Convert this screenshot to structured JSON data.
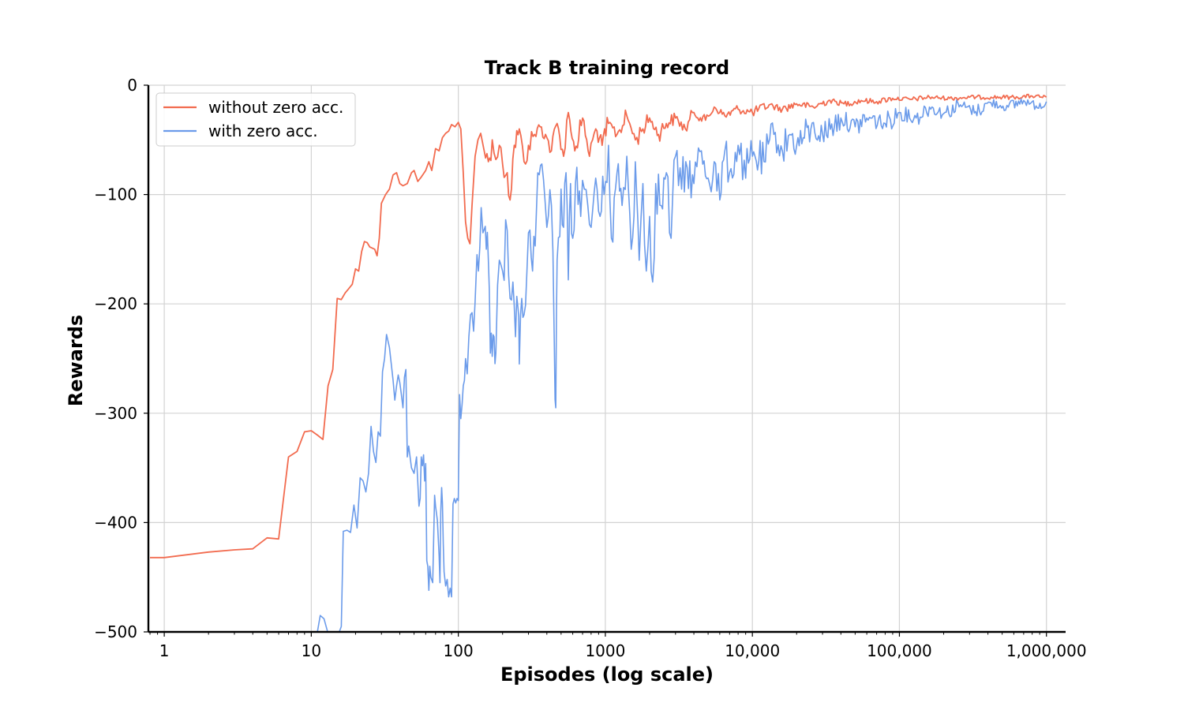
{
  "chart_data": {
    "type": "line",
    "title": "Track B training record",
    "xlabel": "Episodes (log scale)",
    "ylabel": "Rewards",
    "xscale": "log",
    "xlim": [
      0.78,
      1350000
    ],
    "ylim": [
      -500,
      0
    ],
    "x_ticks": [
      {
        "value": 1,
        "label": "1"
      },
      {
        "value": 10,
        "label": "10"
      },
      {
        "value": 100,
        "label": "100"
      },
      {
        "value": 1000,
        "label": "1000"
      },
      {
        "value": 10000,
        "label": "10,000"
      },
      {
        "value": 100000,
        "label": "100,000"
      },
      {
        "value": 1000000,
        "label": "1,000,000"
      }
    ],
    "y_ticks": [
      {
        "value": 0,
        "label": "0"
      },
      {
        "value": -100,
        "label": "−100"
      },
      {
        "value": -200,
        "label": "−200"
      },
      {
        "value": -300,
        "label": "−300"
      },
      {
        "value": -400,
        "label": "−400"
      },
      {
        "value": -500,
        "label": "−500"
      }
    ],
    "grid": true,
    "legend_position": "top-left",
    "series": [
      {
        "name": "without zero acc.",
        "color": "#f26b4f",
        "points": [
          [
            0.8,
            -432
          ],
          [
            1,
            -432
          ],
          [
            2,
            -427
          ],
          [
            3,
            -425
          ],
          [
            4,
            -424
          ],
          [
            5,
            -414
          ],
          [
            6,
            -415
          ],
          [
            7,
            -340
          ],
          [
            8,
            -335
          ],
          [
            9,
            -317
          ],
          [
            10,
            -316
          ],
          [
            11,
            -320
          ],
          [
            12,
            -324
          ],
          [
            13,
            -275
          ],
          [
            14,
            -260
          ],
          [
            15,
            -195
          ],
          [
            16,
            -196
          ],
          [
            17,
            -190
          ],
          [
            18,
            -186
          ],
          [
            19,
            -182
          ],
          [
            20,
            -168
          ],
          [
            21,
            -170
          ],
          [
            22,
            -152
          ],
          [
            23,
            -143
          ],
          [
            24,
            -144
          ],
          [
            25,
            -148
          ],
          [
            27,
            -150
          ],
          [
            28,
            -156
          ],
          [
            29,
            -140
          ],
          [
            30,
            -108
          ],
          [
            32,
            -100
          ],
          [
            34,
            -95
          ],
          [
            36,
            -82
          ],
          [
            38,
            -80
          ],
          [
            40,
            -90
          ],
          [
            42,
            -92
          ],
          [
            45,
            -90
          ],
          [
            48,
            -80
          ],
          [
            50,
            -78
          ],
          [
            53,
            -88
          ],
          [
            56,
            -84
          ],
          [
            60,
            -78
          ],
          [
            63,
            -70
          ],
          [
            66,
            -78
          ],
          [
            70,
            -58
          ],
          [
            74,
            -60
          ],
          [
            78,
            -48
          ],
          [
            82,
            -44
          ],
          [
            86,
            -42
          ],
          [
            90,
            -36
          ],
          [
            95,
            -38
          ],
          [
            100,
            -34
          ],
          [
            104,
            -40
          ],
          [
            108,
            -80
          ],
          [
            112,
            -125
          ],
          [
            116,
            -140
          ],
          [
            120,
            -145
          ],
          [
            124,
            -110
          ],
          [
            130,
            -65
          ],
          [
            136,
            -50
          ],
          [
            142,
            -44
          ],
          [
            150,
            -60
          ],
          [
            160,
            -70
          ],
          [
            170,
            -50
          ],
          [
            180,
            -68
          ],
          [
            190,
            -55
          ],
          [
            200,
            -72
          ],
          [
            215,
            -80
          ],
          [
            225,
            -105
          ],
          [
            240,
            -55
          ],
          [
            260,
            -40
          ],
          [
            280,
            -70
          ],
          [
            300,
            -55
          ],
          [
            330,
            -45
          ],
          [
            360,
            -38
          ],
          [
            400,
            -48
          ],
          [
            430,
            -60
          ],
          [
            470,
            -35
          ],
          [
            520,
            -65
          ],
          [
            560,
            -25
          ],
          [
            620,
            -60
          ],
          [
            700,
            -30
          ],
          [
            780,
            -65
          ],
          [
            860,
            -40
          ],
          [
            950,
            -55
          ],
          [
            1050,
            -35
          ],
          [
            1200,
            -45
          ],
          [
            1400,
            -28
          ],
          [
            1600,
            -50
          ],
          [
            1800,
            -40
          ],
          [
            2000,
            -30
          ],
          [
            2300,
            -45
          ],
          [
            2600,
            -35
          ],
          [
            3000,
            -30
          ],
          [
            3500,
            -40
          ],
          [
            4000,
            -25
          ],
          [
            4800,
            -32
          ],
          [
            5500,
            -20
          ],
          [
            6500,
            -28
          ],
          [
            8000,
            -22
          ],
          [
            10000,
            -25
          ],
          [
            13000,
            -18
          ],
          [
            16000,
            -22
          ],
          [
            20000,
            -17
          ],
          [
            26000,
            -20
          ],
          [
            33000,
            -14
          ],
          [
            42000,
            -17
          ],
          [
            55000,
            -14
          ],
          [
            70000,
            -15
          ],
          [
            90000,
            -12
          ],
          [
            120000,
            -13
          ],
          [
            160000,
            -11
          ],
          [
            220000,
            -12
          ],
          [
            300000,
            -11
          ],
          [
            420000,
            -11
          ],
          [
            600000,
            -11
          ],
          [
            800000,
            -10
          ],
          [
            1000000,
            -11
          ]
        ]
      },
      {
        "name": "with zero acc.",
        "color": "#6b9bea",
        "points": [
          [
            11,
            -500
          ],
          [
            11.5,
            -485
          ],
          [
            12.2,
            -488
          ],
          [
            12.8,
            -498
          ],
          [
            13.2,
            -505
          ],
          [
            15.5,
            -500
          ],
          [
            16,
            -495
          ],
          [
            16.5,
            -408
          ],
          [
            17.5,
            -407
          ],
          [
            18.5,
            -409
          ],
          [
            19.5,
            -384
          ],
          [
            20.5,
            -405
          ],
          [
            21.5,
            -359
          ],
          [
            22.5,
            -362
          ],
          [
            23.5,
            -372
          ],
          [
            24.5,
            -355
          ],
          [
            25.5,
            -312
          ],
          [
            26.5,
            -335
          ],
          [
            27.5,
            -345
          ],
          [
            28.5,
            -317
          ],
          [
            29.5,
            -321
          ],
          [
            30.5,
            -262
          ],
          [
            31.5,
            -250
          ],
          [
            32.5,
            -228
          ],
          [
            34,
            -240
          ],
          [
            36,
            -270
          ],
          [
            37,
            -288
          ],
          [
            38,
            -275
          ],
          [
            39,
            -265
          ],
          [
            40,
            -272
          ],
          [
            41,
            -283
          ],
          [
            42,
            -295
          ],
          [
            43,
            -267
          ],
          [
            44,
            -260
          ],
          [
            45,
            -340
          ],
          [
            46,
            -330
          ],
          [
            48,
            -350
          ],
          [
            50,
            -355
          ],
          [
            52,
            -340
          ],
          [
            54,
            -385
          ],
          [
            55,
            -378
          ],
          [
            56,
            -340
          ],
          [
            57,
            -348
          ],
          [
            58,
            -338
          ],
          [
            59,
            -362
          ],
          [
            60,
            -346
          ],
          [
            61,
            -435
          ],
          [
            62,
            -440
          ],
          [
            63,
            -462
          ],
          [
            64,
            -440
          ],
          [
            65,
            -450
          ],
          [
            67,
            -455
          ],
          [
            69,
            -375
          ],
          [
            70,
            -385
          ],
          [
            72,
            -398
          ],
          [
            74,
            -430
          ],
          [
            75,
            -455
          ],
          [
            76,
            -390
          ],
          [
            77,
            -368
          ],
          [
            78,
            -382
          ],
          [
            79,
            -420
          ],
          [
            80,
            -445
          ],
          [
            82,
            -458
          ],
          [
            84,
            -452
          ],
          [
            86,
            -468
          ],
          [
            88,
            -460
          ],
          [
            90,
            -468
          ],
          [
            92,
            -383
          ],
          [
            94,
            -378
          ],
          [
            96,
            -382
          ],
          [
            98,
            -378
          ],
          [
            100,
            -380
          ],
          [
            102,
            -283
          ],
          [
            104,
            -305
          ],
          [
            106,
            -292
          ],
          [
            108,
            -275
          ],
          [
            110,
            -270
          ],
          [
            112,
            -250
          ],
          [
            115,
            -264
          ],
          [
            118,
            -230
          ],
          [
            121,
            -210
          ],
          [
            124,
            -208
          ],
          [
            127,
            -225
          ],
          [
            130,
            -198
          ],
          [
            134,
            -155
          ],
          [
            137,
            -170
          ],
          [
            140,
            -148
          ],
          [
            143,
            -112
          ],
          [
            147,
            -135
          ],
          [
            150,
            -132
          ],
          [
            155,
            -150
          ],
          [
            160,
            -160
          ],
          [
            165,
            -245
          ],
          [
            170,
            -248
          ],
          [
            175,
            -230
          ],
          [
            180,
            -245
          ],
          [
            190,
            -160
          ],
          [
            200,
            -170
          ],
          [
            215,
            -133
          ],
          [
            225,
            -195
          ],
          [
            235,
            -180
          ],
          [
            245,
            -230
          ],
          [
            255,
            -205
          ],
          [
            260,
            -255
          ],
          [
            270,
            -195
          ],
          [
            280,
            -210
          ],
          [
            300,
            -135
          ],
          [
            320,
            -170
          ],
          [
            340,
            -115
          ],
          [
            370,
            -72
          ],
          [
            400,
            -130
          ],
          [
            430,
            -110
          ],
          [
            450,
            -240
          ],
          [
            460,
            -295
          ],
          [
            470,
            -160
          ],
          [
            500,
            -95
          ],
          [
            520,
            -130
          ],
          [
            540,
            -80
          ],
          [
            560,
            -178
          ],
          [
            580,
            -90
          ],
          [
            600,
            -140
          ],
          [
            640,
            -75
          ],
          [
            680,
            -120
          ],
          [
            720,
            -95
          ],
          [
            760,
            -110
          ],
          [
            800,
            -130
          ],
          [
            860,
            -85
          ],
          [
            920,
            -120
          ],
          [
            980,
            -100
          ],
          [
            1050,
            -55
          ],
          [
            1100,
            -140
          ],
          [
            1200,
            -80
          ],
          [
            1300,
            -110
          ],
          [
            1400,
            -65
          ],
          [
            1500,
            -150
          ],
          [
            1600,
            -70
          ],
          [
            1700,
            -160
          ],
          [
            1800,
            -90
          ],
          [
            1900,
            -170
          ],
          [
            2000,
            -120
          ],
          [
            2100,
            -180
          ],
          [
            2200,
            -90
          ],
          [
            2400,
            -110
          ],
          [
            2600,
            -80
          ],
          [
            2800,
            -140
          ],
          [
            3000,
            -65
          ],
          [
            3300,
            -95
          ],
          [
            3600,
            -75
          ],
          [
            4000,
            -90
          ],
          [
            4500,
            -60
          ],
          [
            5000,
            -85
          ],
          [
            5500,
            -70
          ],
          [
            6000,
            -105
          ],
          [
            6500,
            -60
          ],
          [
            7000,
            -80
          ],
          [
            8000,
            -55
          ],
          [
            9000,
            -85
          ],
          [
            10000,
            -65
          ],
          [
            12000,
            -70
          ],
          [
            14000,
            -45
          ],
          [
            16000,
            -60
          ],
          [
            18000,
            -45
          ],
          [
            20000,
            -55
          ],
          [
            25000,
            -40
          ],
          [
            30000,
            -45
          ],
          [
            40000,
            -30
          ],
          [
            50000,
            -38
          ],
          [
            60000,
            -30
          ],
          [
            80000,
            -35
          ],
          [
            100000,
            -25
          ],
          [
            130000,
            -30
          ],
          [
            160000,
            -20
          ],
          [
            200000,
            -26
          ],
          [
            260000,
            -18
          ],
          [
            330000,
            -24
          ],
          [
            420000,
            -16
          ],
          [
            550000,
            -20
          ],
          [
            700000,
            -14
          ],
          [
            850000,
            -19
          ],
          [
            1000000,
            -15
          ]
        ]
      }
    ]
  }
}
